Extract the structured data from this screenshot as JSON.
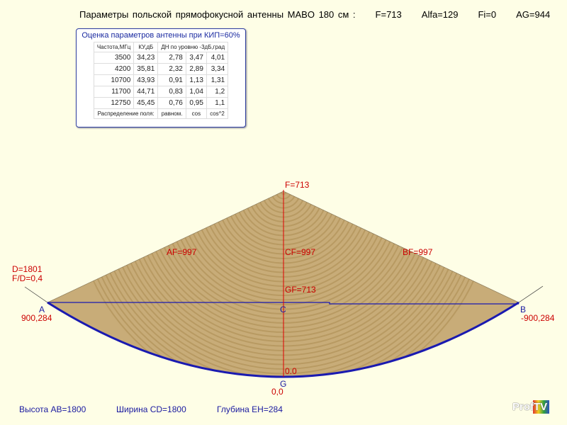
{
  "title": {
    "main": "Параметры  польской прямофокусной антенны MABO 180 см :",
    "f": "F=713",
    "alfa": "Alfa=129",
    "fi": "Fi=0",
    "ag": "AG=944"
  },
  "table": {
    "caption": "Оценка параметров антенны при КИП=60%",
    "headers": [
      "Частота,МГц",
      "КУ,дБ",
      "ДН по уровню -3дБ,град"
    ],
    "rows": [
      [
        "3500",
        "34,23",
        "2,78",
        "3,47",
        "4,01"
      ],
      [
        "4200",
        "35,81",
        "2,32",
        "2,89",
        "3,34"
      ],
      [
        "10700",
        "43,93",
        "0,91",
        "1,13",
        "1,31"
      ],
      [
        "11700",
        "44,71",
        "0,83",
        "1,04",
        "1,2"
      ],
      [
        "12750",
        "45,45",
        "0,76",
        "0,95",
        "1,1"
      ]
    ],
    "footer": [
      "Распределение поля:",
      "равном.",
      "cos",
      "cos^2"
    ]
  },
  "labels": {
    "f": "F=713",
    "af": "AF=997",
    "cf": "CF=997",
    "bf": "BF=997",
    "gf": "GF=713",
    "d": "D=1801",
    "fd": "F/D=0,4",
    "a": "A",
    "a_coord": "900,284",
    "b": "B",
    "b_coord": "-900,284",
    "c": "C",
    "g": "G",
    "g_top": "0.0",
    "g_coord": "0,0"
  },
  "footer": {
    "height": "Высота AB=1800",
    "width": "Ширина CD=1800",
    "depth": "Глубина EH=284"
  },
  "logo": "ProfTV",
  "colors": {
    "fill": "#c8ac78",
    "reflector": "#1a1ab0",
    "axis": "#e00000"
  }
}
